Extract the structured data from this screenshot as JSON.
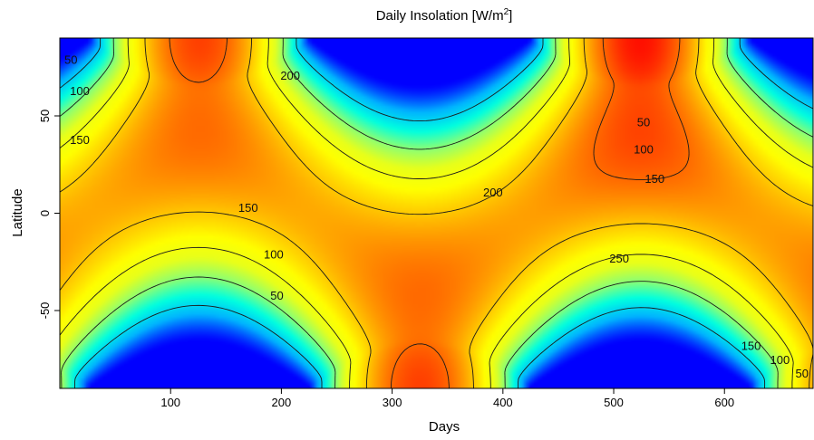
{
  "chart_data": {
    "type": "heatmap",
    "title": "Daily Insolation [W/m",
    "title_superscript": "2",
    "title_suffix": "]",
    "xlabel": "Days",
    "ylabel": "Latitude",
    "xlim": [
      0,
      680
    ],
    "ylim": [
      -90,
      90
    ],
    "x_ticks": [
      100,
      200,
      300,
      400,
      500,
      600
    ],
    "x_tick_labels": [
      "100",
      "200",
      "300",
      "400",
      "500",
      "600"
    ],
    "y_ticks": [
      -50,
      0,
      50
    ],
    "y_tick_labels": [
      "-50",
      "0",
      "50"
    ],
    "colormap": [
      "#0000ff",
      "#00b4ff",
      "#00ffe0",
      "#8fff70",
      "#e8ff1a",
      "#ffff00",
      "#ffc800",
      "#ff8a00",
      "#ff4a00",
      "#ff0000"
    ],
    "value_range": [
      0,
      300
    ],
    "contour_levels": [
      50,
      100,
      150,
      200,
      250
    ],
    "contour_labels": [
      {
        "text": "50",
        "x": 10,
        "y": 79
      },
      {
        "text": "100",
        "x": 18,
        "y": 63
      },
      {
        "text": "150",
        "x": 18,
        "y": 38
      },
      {
        "text": "200",
        "x": 208,
        "y": 71
      },
      {
        "text": "50",
        "x": 527,
        "y": 47
      },
      {
        "text": "100",
        "x": 527,
        "y": 33
      },
      {
        "text": "150",
        "x": 537,
        "y": 18
      },
      {
        "text": "200",
        "x": 391,
        "y": 11
      },
      {
        "text": "150",
        "x": 170,
        "y": 3
      },
      {
        "text": "100",
        "x": 193,
        "y": -21
      },
      {
        "text": "50",
        "x": 196,
        "y": -42
      },
      {
        "text": "250",
        "x": 505,
        "y": -23
      },
      {
        "text": "150",
        "x": 624,
        "y": -68
      },
      {
        "text": "100",
        "x": 650,
        "y": -75
      },
      {
        "text": "50",
        "x": 670,
        "y": -82
      }
    ]
  }
}
